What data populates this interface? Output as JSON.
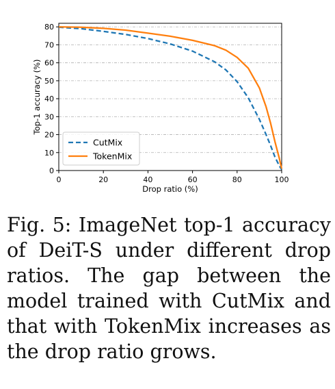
{
  "chart_data": {
    "type": "line",
    "title": "",
    "xlabel": "Drop ratio (%)",
    "ylabel": "Top-1 accuracy (%)",
    "xlim": [
      0,
      100
    ],
    "ylim": [
      0,
      82
    ],
    "xticks": [
      0,
      20,
      40,
      60,
      80,
      100
    ],
    "yticks": [
      0,
      10,
      20,
      30,
      40,
      50,
      60,
      70,
      80
    ],
    "grid": "horizontal dash-dot",
    "legend_position": "lower-left",
    "series": [
      {
        "name": "CutMix",
        "color": "#1f77b4",
        "style": "dashed",
        "x": [
          0,
          10,
          20,
          30,
          40,
          50,
          60,
          70,
          75,
          80,
          85,
          90,
          93,
          95,
          97,
          99,
          100
        ],
        "values": [
          79.8,
          79.0,
          77.5,
          75.8,
          73.5,
          70.5,
          66.5,
          60.5,
          56.0,
          49.5,
          40.5,
          28.5,
          20.0,
          14.0,
          7.5,
          2.5,
          0.5
        ]
      },
      {
        "name": "TokenMix",
        "color": "#ff7f0e",
        "style": "solid",
        "x": [
          0,
          10,
          20,
          30,
          40,
          50,
          60,
          70,
          75,
          80,
          85,
          90,
          93,
          95,
          97,
          99,
          100
        ],
        "values": [
          80.0,
          79.8,
          79.2,
          78.2,
          76.5,
          74.8,
          72.5,
          69.5,
          67.0,
          63.0,
          57.0,
          46.0,
          35.5,
          26.5,
          16.0,
          6.5,
          1.0
        ]
      }
    ]
  },
  "caption": {
    "text": "Fig. 5: ImageNet top-1 accuracy of DeiT-S under different drop ratios. The gap between the model trained with CutMix and that with TokenMix increases as the drop ratio grows."
  }
}
